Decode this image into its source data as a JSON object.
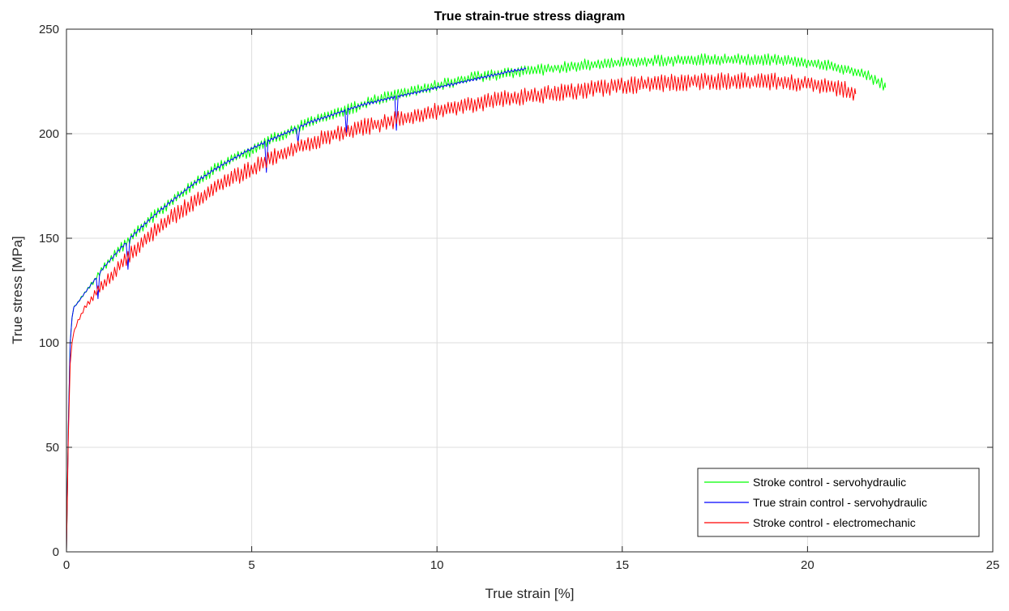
{
  "chart_data": {
    "type": "line",
    "title": "True strain-true stress diagram",
    "xlabel": "True strain [%]",
    "ylabel": "True stress [MPa]",
    "xlim": [
      0,
      25
    ],
    "ylim": [
      0,
      250
    ],
    "xticks": [
      "0",
      "5",
      "10",
      "15",
      "20",
      "25"
    ],
    "yticks": [
      "0",
      "50",
      "100",
      "150",
      "200",
      "250"
    ],
    "grid": true,
    "legend_position": "bottom-right",
    "series": [
      {
        "name": "Stroke control - servohydraulic",
        "color": "#00ff00",
        "noise": 4,
        "x": [
          0,
          0.05,
          0.1,
          0.15,
          0.2,
          0.3,
          0.5,
          0.8,
          1,
          1.5,
          2,
          2.5,
          3,
          3.5,
          4,
          4.5,
          5,
          5.5,
          6,
          6.5,
          7,
          7.5,
          8,
          8.5,
          9,
          9.5,
          10,
          10.5,
          11,
          11.5,
          12,
          12.5,
          13,
          13.5,
          14,
          14.5,
          15,
          15.5,
          16,
          16.5,
          17,
          17.5,
          18,
          18.5,
          19,
          19.5,
          20,
          20.5,
          21,
          21.3,
          21.6,
          21.8,
          22,
          22.1
        ],
        "y": [
          0,
          60,
          100,
          112,
          117,
          119,
          124,
          131,
          136,
          146,
          155,
          163,
          170,
          177,
          183,
          188,
          192,
          197,
          201,
          205,
          208,
          211,
          214,
          217,
          219,
          221,
          223,
          225,
          227,
          228,
          229,
          230,
          231,
          232,
          233,
          233.5,
          234,
          234.5,
          235,
          235,
          235.5,
          235.5,
          235.5,
          235.5,
          235.5,
          235,
          234,
          233,
          231,
          229.5,
          228,
          226,
          224,
          222
        ]
      },
      {
        "name": "True strain control - servohydraulic",
        "color": "#0000ff",
        "noise": 1,
        "x": [
          0,
          0.05,
          0.1,
          0.15,
          0.2,
          0.3,
          0.5,
          0.8,
          1,
          1.5,
          2,
          2.5,
          3,
          3.5,
          4,
          4.5,
          5,
          5.5,
          6,
          6.5,
          7,
          7.5,
          8,
          8.5,
          9,
          9.5,
          10,
          10.5,
          11,
          11.5,
          12,
          12.4
        ],
        "y": [
          0,
          60,
          100,
          112,
          117,
          119,
          124,
          131,
          136,
          146,
          155,
          163,
          170,
          177,
          183,
          188,
          193,
          197,
          201,
          205,
          208,
          211,
          214,
          216,
          218,
          220,
          222,
          224,
          226,
          228,
          230,
          231
        ]
      },
      {
        "name": "Stroke control - electromechanic",
        "color": "#ff0000",
        "noise": 6,
        "x": [
          0,
          0.05,
          0.1,
          0.15,
          0.2,
          0.3,
          0.5,
          0.8,
          1,
          1.5,
          2,
          2.5,
          3,
          3.5,
          4,
          4.5,
          5,
          5.5,
          6,
          6.5,
          7,
          7.5,
          8,
          8.5,
          9,
          9.5,
          10,
          10.5,
          11,
          11.5,
          12,
          12.5,
          13,
          13.5,
          14,
          14.5,
          15,
          15.5,
          16,
          16.5,
          17,
          17.5,
          18,
          18.5,
          19,
          19.5,
          20,
          20.5,
          21,
          21.3
        ],
        "y": [
          0,
          55,
          90,
          100,
          105,
          110,
          117,
          124,
          128,
          138,
          147,
          155,
          162,
          168,
          174,
          179,
          183,
          188,
          192,
          195,
          198,
          201,
          203,
          205,
          207,
          209,
          211,
          213,
          214,
          216,
          217,
          218,
          219,
          220,
          221,
          222,
          223,
          223.5,
          224,
          224.5,
          225,
          225,
          225,
          225,
          225,
          224.5,
          224,
          223,
          221,
          219
        ]
      }
    ]
  }
}
